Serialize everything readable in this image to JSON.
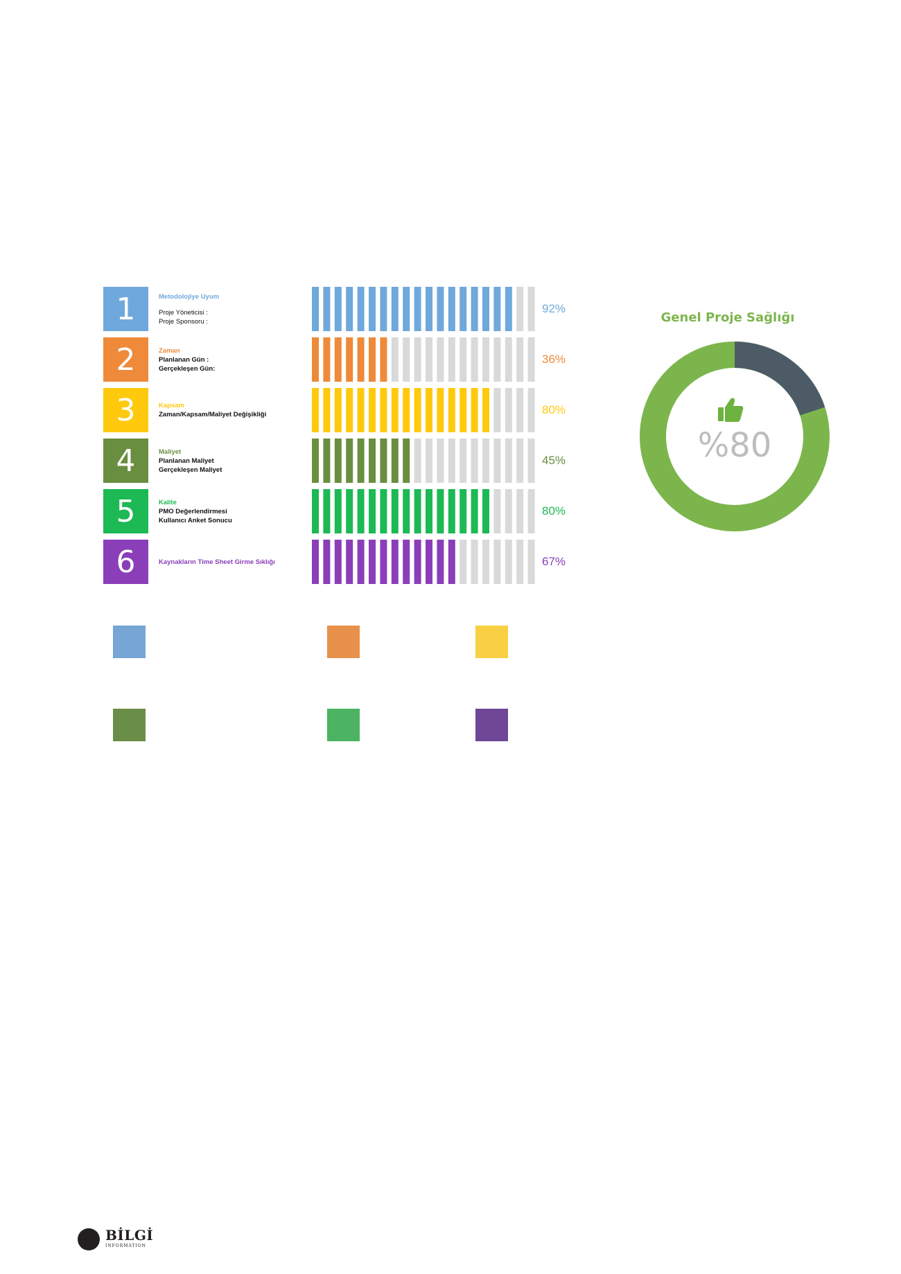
{
  "chart_data": [
    {
      "type": "bar",
      "segments_total": 20,
      "rows": [
        {
          "number": "1",
          "title": "Metodolojiye Uyum",
          "lines": [
            "Proje Yöneticisi :",
            "Proje Sponsoru  :"
          ],
          "value": 92,
          "label": "92%",
          "color": "#6fa8dc"
        },
        {
          "number": "2",
          "title": "Zaman",
          "lines": [
            "Planlanan Gün :",
            "Gerçekleşen Gün:"
          ],
          "value": 36,
          "label": "36%",
          "color": "#ee8a3a"
        },
        {
          "number": "3",
          "title": "Kapsam",
          "lines": [
            "Zaman/Kapsam/Maliyet Değişikliği"
          ],
          "value": 80,
          "label": "80%",
          "color": "#ffc90e"
        },
        {
          "number": "4",
          "title": "Maliyet",
          "lines": [
            "Planlanan Maliyet",
            "Gerçekleşen Maliyet"
          ],
          "value": 45,
          "label": "45%",
          "color": "#6a8e3f"
        },
        {
          "number": "5",
          "title": "Kalite",
          "lines": [
            "PMO Değerlendirmesi",
            "Kullanıcı Anket Sonucu"
          ],
          "value": 80,
          "label": "80%",
          "color": "#1db954"
        },
        {
          "number": "6",
          "title": "Kaynakların Time Sheet Girme Sıklığı",
          "lines": [],
          "value": 67,
          "label": "67%",
          "color": "#8a3eb8"
        }
      ]
    },
    {
      "type": "pie",
      "title": "Genel Proje Sağlığı",
      "value": 80,
      "label": "%80",
      "colors": {
        "filled": "#7db54d",
        "remaining": "#4d5b67"
      }
    }
  ],
  "legend": {
    "colors": [
      "#76a5d6",
      "#e8914a",
      "#f9d044",
      "#6a8e47",
      "#4cb363",
      "#6e4796"
    ]
  },
  "icons": {
    "thumbs_up": "thumbs-up-icon"
  },
  "logo": {
    "name": "BİLGİ",
    "subtitle": "INFORMATION"
  }
}
